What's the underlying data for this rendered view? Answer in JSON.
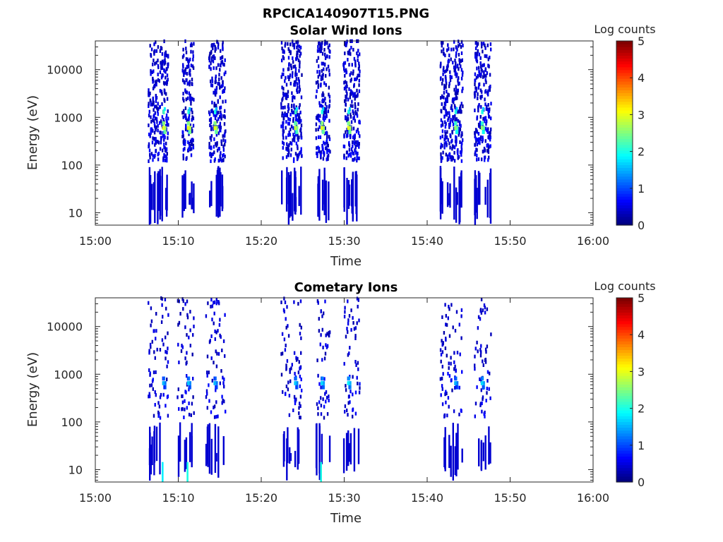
{
  "figure": {
    "title": "RPCICA140907T15.PNG"
  },
  "chart_data": [
    {
      "type": "heatmap",
      "title": "Solar Wind Ions",
      "xlabel": "Time",
      "ylabel": "Energy (eV)",
      "xlim": [
        "15:00",
        "16:00"
      ],
      "xticks": [
        "15:00",
        "15:10",
        "15:20",
        "15:30",
        "15:40",
        "15:50",
        "16:00"
      ],
      "ylim": [
        5.5,
        40000
      ],
      "yscale": "log",
      "yticks": [
        "10",
        "100",
        "1000",
        "10000"
      ],
      "grid": false,
      "colorbar": {
        "label": "Log counts",
        "min": 0,
        "max": 5,
        "ticks": [
          "0",
          "1",
          "2",
          "3",
          "4",
          "5"
        ],
        "colormap": "jet"
      },
      "bursts": [
        {
          "time_min": 8.2,
          "start_min": 6.3,
          "end_min": 8.7,
          "peak_eV": 600,
          "peak_log_counts": 3.0,
          "secondary_eV": 1300,
          "secondary_log_counts": 2.2
        },
        {
          "time_min": 11.2,
          "start_min": 10.4,
          "end_min": 11.8,
          "peak_eV": 600,
          "peak_log_counts": 3.0,
          "secondary_eV": 1300,
          "secondary_log_counts": 2.0
        },
        {
          "time_min": 14.4,
          "start_min": 13.6,
          "end_min": 15.6,
          "peak_eV": 600,
          "peak_log_counts": 3.0,
          "secondary_eV": 1300,
          "secondary_log_counts": 2.0
        },
        {
          "time_min": 24.1,
          "start_min": 22.3,
          "end_min": 24.8,
          "peak_eV": 600,
          "peak_log_counts": 2.8,
          "secondary_eV": 1300,
          "secondary_log_counts": 2.2
        },
        {
          "time_min": 27.3,
          "start_min": 26.5,
          "end_min": 28.2,
          "peak_eV": 600,
          "peak_log_counts": 3.0,
          "secondary_eV": 1300,
          "secondary_log_counts": 2.0
        },
        {
          "time_min": 30.5,
          "start_min": 29.8,
          "end_min": 31.8,
          "peak_eV": 600,
          "peak_log_counts": 3.0,
          "secondary_eV": 1300,
          "secondary_log_counts": 2.0
        },
        {
          "time_min": 43.4,
          "start_min": 41.5,
          "end_min": 44.2,
          "peak_eV": 600,
          "peak_log_counts": 2.6,
          "secondary_eV": 1300,
          "secondary_log_counts": 2.0
        },
        {
          "time_min": 46.6,
          "start_min": 45.6,
          "end_min": 47.6,
          "peak_eV": 600,
          "peak_log_counts": 2.6,
          "secondary_eV": 1300,
          "secondary_log_counts": 2.0
        }
      ]
    },
    {
      "type": "heatmap",
      "title": "Cometary Ions",
      "xlabel": "Time",
      "ylabel": "Energy (eV)",
      "xlim": [
        "15:00",
        "16:00"
      ],
      "xticks": [
        "15:00",
        "15:10",
        "15:20",
        "15:30",
        "15:40",
        "15:50",
        "16:00"
      ],
      "ylim": [
        5.5,
        40000
      ],
      "yscale": "log",
      "yticks": [
        "10",
        "100",
        "1000",
        "10000"
      ],
      "grid": false,
      "colorbar": {
        "label": "Log counts",
        "min": 0,
        "max": 5,
        "ticks": [
          "0",
          "1",
          "2",
          "3",
          "4",
          "5"
        ],
        "colormap": "jet"
      },
      "bursts": [
        {
          "time_min": 8.2,
          "start_min": 6.3,
          "end_min": 8.7,
          "peak_eV": 650,
          "peak_log_counts": 1.5,
          "low_energy_eV": 8,
          "low_energy_log_counts": 1.8
        },
        {
          "time_min": 11.2,
          "start_min": 9.8,
          "end_min": 11.8,
          "peak_eV": 650,
          "peak_log_counts": 1.6,
          "low_energy_eV": 8,
          "low_energy_log_counts": 2.0
        },
        {
          "time_min": 14.4,
          "start_min": 13.2,
          "end_min": 15.6,
          "peak_eV": 650,
          "peak_log_counts": 1.5
        },
        {
          "time_min": 24.1,
          "start_min": 22.3,
          "end_min": 24.8,
          "peak_eV": 650,
          "peak_log_counts": 1.6
        },
        {
          "time_min": 27.3,
          "start_min": 26.5,
          "end_min": 28.2,
          "peak_eV": 650,
          "peak_log_counts": 1.7,
          "low_energy_eV": 8,
          "low_energy_log_counts": 2.0
        },
        {
          "time_min": 30.5,
          "start_min": 29.8,
          "end_min": 31.8,
          "peak_eV": 650,
          "peak_log_counts": 1.8
        },
        {
          "time_min": 43.4,
          "start_min": 41.5,
          "end_min": 44.2,
          "peak_eV": 650,
          "peak_log_counts": 1.5
        },
        {
          "time_min": 46.6,
          "start_min": 45.6,
          "end_min": 47.6,
          "peak_eV": 650,
          "peak_log_counts": 1.7
        }
      ]
    }
  ]
}
